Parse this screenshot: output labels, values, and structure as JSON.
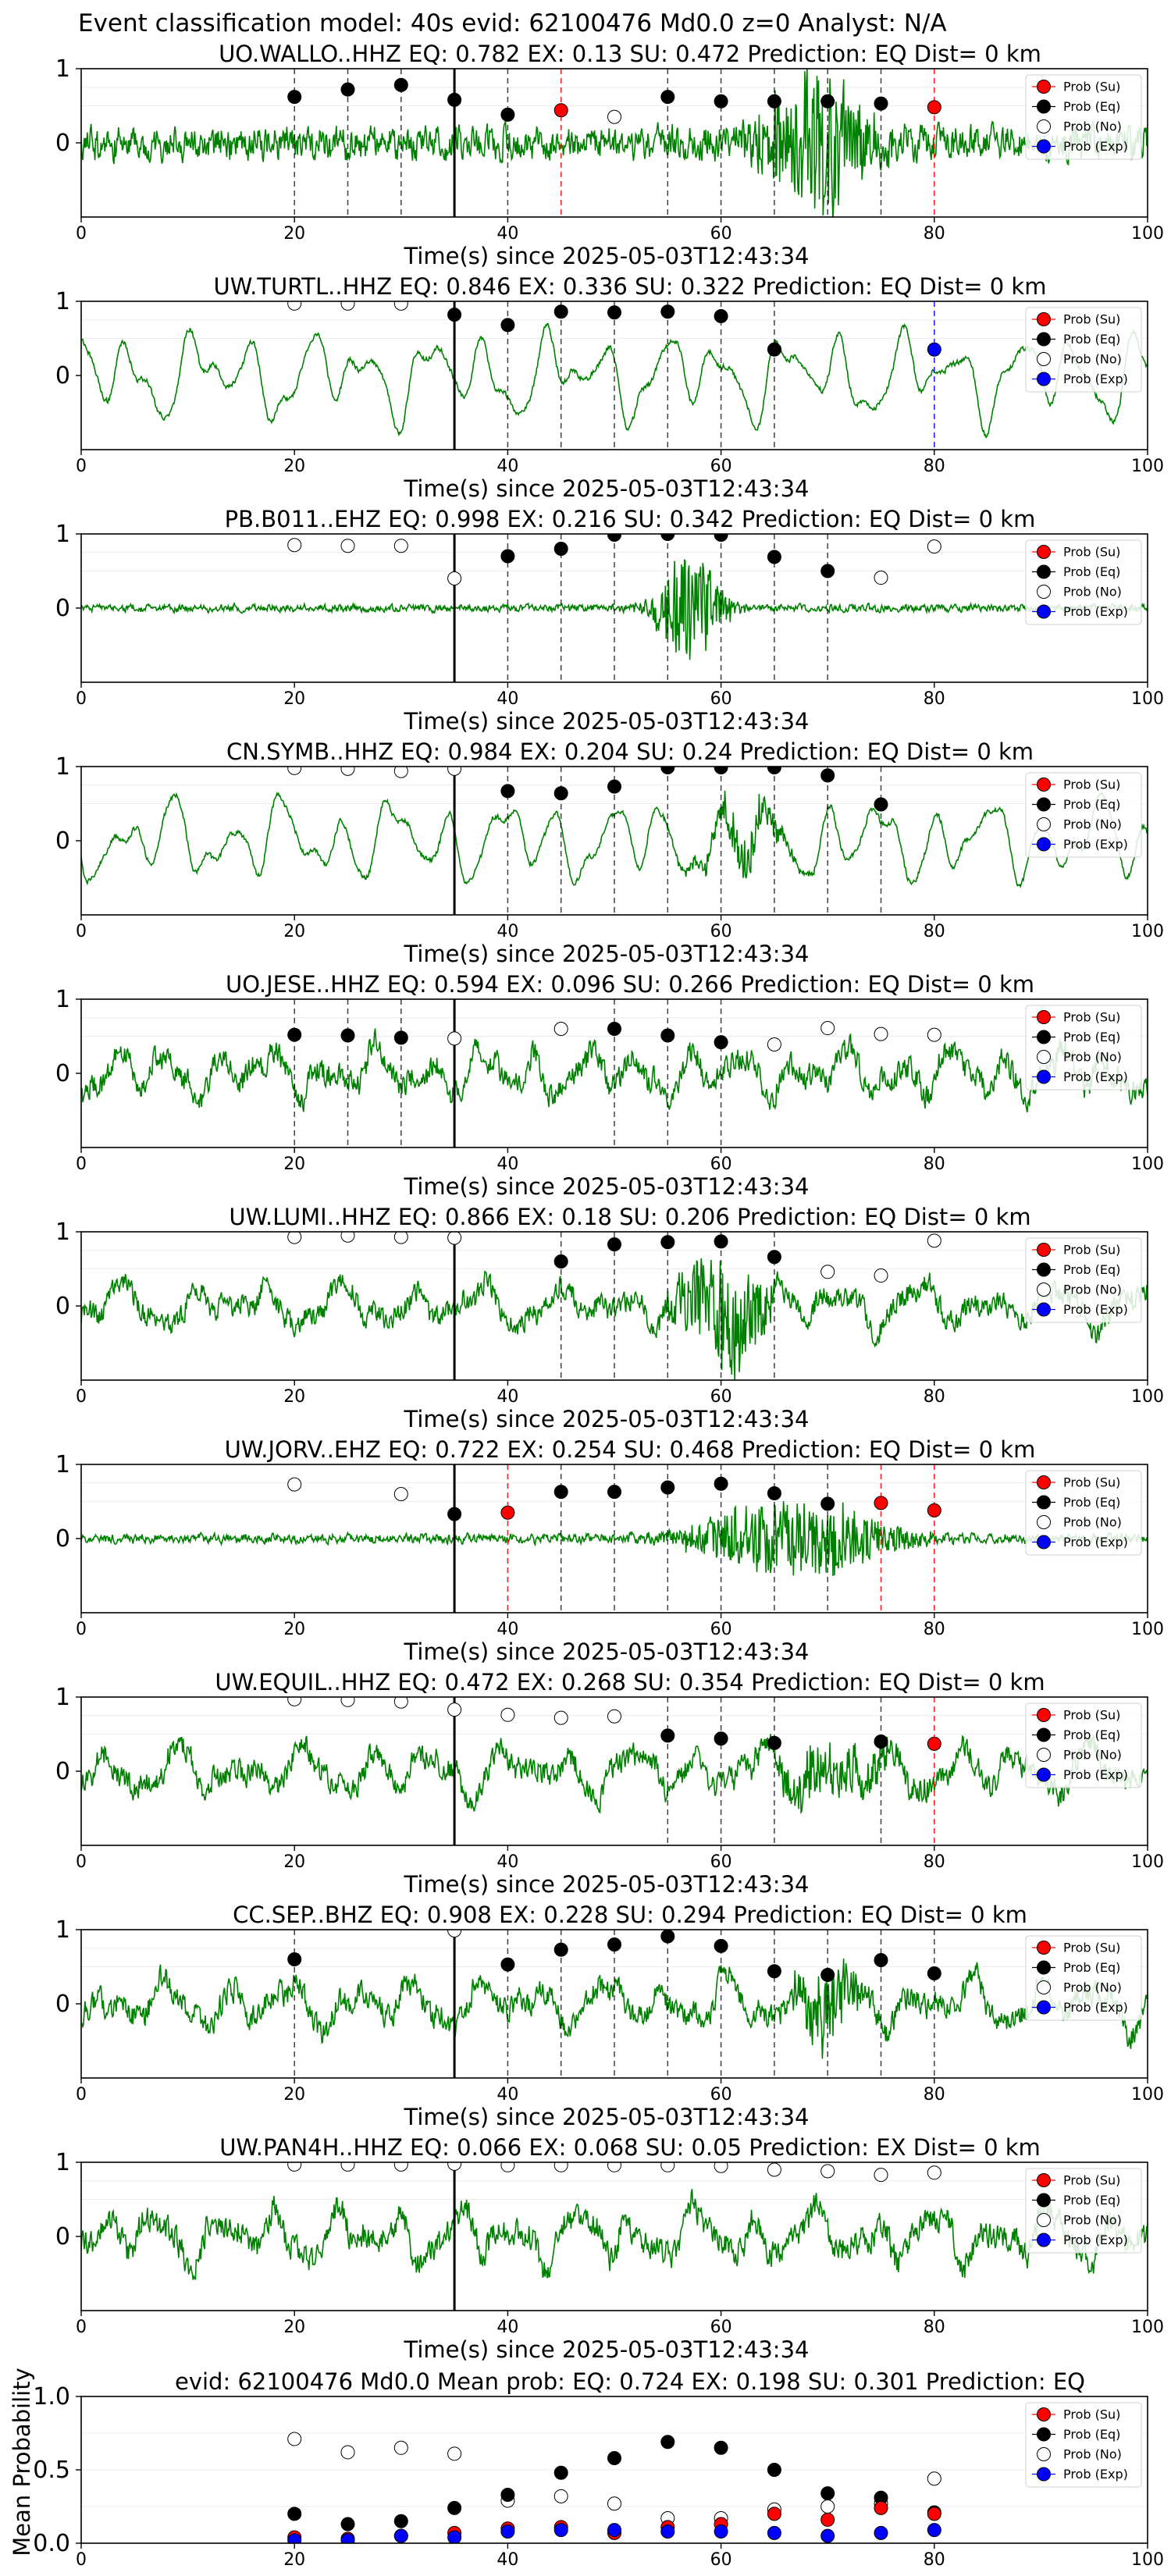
{
  "figure": {
    "suptitle": "Event classification model: 40s evid: 62100476 Md0.0 z=0 Analyst: N/A"
  },
  "legend_labels": [
    "Prob (Su)",
    "Prob (Eq)",
    "Prob (No)",
    "Prob (Exp)"
  ],
  "colors": {
    "waveform": "#008000",
    "su": "#ff0000",
    "eq": "#000000",
    "no": "#ffffff",
    "exp": "#0000ff",
    "onset_line": "#000000"
  },
  "chart_data": [
    {
      "type": "line",
      "title": "UO.WALLO..HHZ   EQ: 0.782  EX: 0.13  SU: 0.472   Prediction: EQ    Dist= 0 km",
      "xlabel": "Time(s) since 2025-05-03T12:43:34",
      "ylabel": "",
      "xlim": [
        0,
        100
      ],
      "ylim": [
        -1,
        1
      ],
      "xticks": [
        0,
        20,
        40,
        60,
        80,
        100
      ],
      "yticks": [
        1,
        0
      ],
      "onset_x": 35,
      "waveform": {
        "style": "noise",
        "base_amp": 0.18,
        "bursts": [
          {
            "center": 69,
            "width": 5,
            "amp": 0.9
          }
        ]
      },
      "points": [
        {
          "x": 20,
          "y": 0.62,
          "class": "Eq"
        },
        {
          "x": 25,
          "y": 0.72,
          "class": "Eq"
        },
        {
          "x": 30,
          "y": 0.78,
          "class": "Eq"
        },
        {
          "x": 35,
          "y": 0.58,
          "class": "Eq"
        },
        {
          "x": 40,
          "y": 0.38,
          "class": "Eq"
        },
        {
          "x": 45,
          "y": 0.44,
          "class": "Su"
        },
        {
          "x": 50,
          "y": 0.35,
          "class": "No"
        },
        {
          "x": 55,
          "y": 0.62,
          "class": "Eq"
        },
        {
          "x": 60,
          "y": 0.56,
          "class": "Eq"
        },
        {
          "x": 65,
          "y": 0.56,
          "class": "Eq"
        },
        {
          "x": 70,
          "y": 0.56,
          "class": "Eq"
        },
        {
          "x": 75,
          "y": 0.53,
          "class": "Eq"
        },
        {
          "x": 80,
          "y": 0.48,
          "class": "Su"
        }
      ]
    },
    {
      "type": "line",
      "title": "UW.TURTL..HHZ   EQ: 0.846  EX: 0.336  SU: 0.322   Prediction: EQ    Dist= 0 km",
      "xlabel": "Time(s) since 2025-05-03T12:43:34",
      "ylabel": "",
      "xlim": [
        0,
        100
      ],
      "ylim": [
        -1,
        1
      ],
      "xticks": [
        0,
        20,
        40,
        60,
        80,
        100
      ],
      "yticks": [
        1,
        0
      ],
      "onset_x": 35,
      "waveform": {
        "style": "smooth",
        "base_amp": 0.7,
        "bursts": []
      },
      "points": [
        {
          "x": 20,
          "y": 0.97,
          "class": "No"
        },
        {
          "x": 25,
          "y": 0.97,
          "class": "No"
        },
        {
          "x": 30,
          "y": 0.97,
          "class": "No"
        },
        {
          "x": 35,
          "y": 0.82,
          "class": "Eq"
        },
        {
          "x": 40,
          "y": 0.68,
          "class": "Eq"
        },
        {
          "x": 45,
          "y": 0.86,
          "class": "Eq"
        },
        {
          "x": 50,
          "y": 0.85,
          "class": "Eq"
        },
        {
          "x": 55,
          "y": 0.86,
          "class": "Eq"
        },
        {
          "x": 60,
          "y": 0.8,
          "class": "Eq"
        },
        {
          "x": 65,
          "y": 0.35,
          "class": "Eq"
        },
        {
          "x": 80,
          "y": 0.35,
          "class": "Exp"
        }
      ]
    },
    {
      "type": "line",
      "title": "PB.B011..EHZ   EQ: 0.998  EX: 0.216  SU: 0.342   Prediction: EQ    Dist= 0 km",
      "xlabel": "Time(s) since 2025-05-03T12:43:34",
      "ylabel": "",
      "xlim": [
        0,
        100
      ],
      "ylim": [
        -1,
        1
      ],
      "xticks": [
        0,
        20,
        40,
        60,
        80,
        100
      ],
      "yticks": [
        1,
        0
      ],
      "onset_x": 35,
      "waveform": {
        "style": "noise",
        "base_amp": 0.04,
        "bursts": [
          {
            "center": 57,
            "width": 3,
            "amp": 0.8
          }
        ]
      },
      "points": [
        {
          "x": 20,
          "y": 0.85,
          "class": "No"
        },
        {
          "x": 25,
          "y": 0.84,
          "class": "No"
        },
        {
          "x": 30,
          "y": 0.84,
          "class": "No"
        },
        {
          "x": 35,
          "y": 0.4,
          "class": "No"
        },
        {
          "x": 40,
          "y": 0.7,
          "class": "Eq"
        },
        {
          "x": 45,
          "y": 0.8,
          "class": "Eq"
        },
        {
          "x": 50,
          "y": 0.99,
          "class": "Eq"
        },
        {
          "x": 55,
          "y": 1.0,
          "class": "Eq"
        },
        {
          "x": 60,
          "y": 0.99,
          "class": "Eq"
        },
        {
          "x": 65,
          "y": 0.69,
          "class": "Eq"
        },
        {
          "x": 70,
          "y": 0.5,
          "class": "Eq"
        },
        {
          "x": 75,
          "y": 0.41,
          "class": "No"
        },
        {
          "x": 80,
          "y": 0.83,
          "class": "No"
        }
      ]
    },
    {
      "type": "line",
      "title": "CN.SYMB..HHZ   EQ: 0.984  EX: 0.204  SU: 0.24   Prediction: EQ    Dist= 0 km",
      "xlabel": "Time(s) since 2025-05-03T12:43:34",
      "ylabel": "",
      "xlim": [
        0,
        100
      ],
      "ylim": [
        -1,
        1
      ],
      "xticks": [
        0,
        20,
        40,
        60,
        80,
        100
      ],
      "yticks": [
        1,
        0
      ],
      "onset_x": 35,
      "waveform": {
        "style": "smooth",
        "base_amp": 0.65,
        "bursts": [
          {
            "center": 62,
            "width": 4,
            "amp": 0.3
          }
        ]
      },
      "points": [
        {
          "x": 20,
          "y": 0.98,
          "class": "No"
        },
        {
          "x": 25,
          "y": 0.97,
          "class": "No"
        },
        {
          "x": 30,
          "y": 0.94,
          "class": "No"
        },
        {
          "x": 35,
          "y": 0.97,
          "class": "No"
        },
        {
          "x": 40,
          "y": 0.67,
          "class": "Eq"
        },
        {
          "x": 45,
          "y": 0.64,
          "class": "Eq"
        },
        {
          "x": 50,
          "y": 0.73,
          "class": "Eq"
        },
        {
          "x": 55,
          "y": 0.99,
          "class": "Eq"
        },
        {
          "x": 60,
          "y": 0.99,
          "class": "Eq"
        },
        {
          "x": 65,
          "y": 0.99,
          "class": "Eq"
        },
        {
          "x": 70,
          "y": 0.88,
          "class": "Eq"
        },
        {
          "x": 75,
          "y": 0.49,
          "class": "Eq"
        }
      ]
    },
    {
      "type": "line",
      "title": "UO.JESE..HHZ   EQ: 0.594  EX: 0.096  SU: 0.266   Prediction: EQ    Dist= 0 km",
      "xlabel": "Time(s) since 2025-05-03T12:43:34",
      "ylabel": "",
      "xlim": [
        0,
        100
      ],
      "ylim": [
        -1,
        1
      ],
      "xticks": [
        0,
        20,
        40,
        60,
        80,
        100
      ],
      "yticks": [
        1,
        0
      ],
      "onset_x": 35,
      "waveform": {
        "style": "mixed",
        "base_amp": 0.5,
        "bursts": []
      },
      "points": [
        {
          "x": 20,
          "y": 0.52,
          "class": "Eq"
        },
        {
          "x": 25,
          "y": 0.51,
          "class": "Eq"
        },
        {
          "x": 30,
          "y": 0.48,
          "class": "Eq"
        },
        {
          "x": 35,
          "y": 0.47,
          "class": "No"
        },
        {
          "x": 45,
          "y": 0.6,
          "class": "No"
        },
        {
          "x": 50,
          "y": 0.6,
          "class": "Eq"
        },
        {
          "x": 55,
          "y": 0.51,
          "class": "Eq"
        },
        {
          "x": 60,
          "y": 0.42,
          "class": "Eq"
        },
        {
          "x": 65,
          "y": 0.39,
          "class": "No"
        },
        {
          "x": 70,
          "y": 0.61,
          "class": "No"
        },
        {
          "x": 75,
          "y": 0.53,
          "class": "No"
        },
        {
          "x": 80,
          "y": 0.52,
          "class": "No"
        }
      ]
    },
    {
      "type": "line",
      "title": "UW.LUMI..HHZ   EQ: 0.866  EX: 0.18  SU: 0.206   Prediction: EQ    Dist= 0 km",
      "xlabel": "Time(s) since 2025-05-03T12:43:34",
      "ylabel": "",
      "xlim": [
        0,
        100
      ],
      "ylim": [
        -1,
        1
      ],
      "xticks": [
        0,
        20,
        40,
        60,
        80,
        100
      ],
      "yticks": [
        1,
        0
      ],
      "onset_x": 35,
      "waveform": {
        "style": "mixed",
        "base_amp": 0.45,
        "bursts": [
          {
            "center": 60,
            "width": 4,
            "amp": 0.8
          }
        ]
      },
      "points": [
        {
          "x": 20,
          "y": 0.93,
          "class": "No"
        },
        {
          "x": 25,
          "y": 0.95,
          "class": "No"
        },
        {
          "x": 30,
          "y": 0.93,
          "class": "No"
        },
        {
          "x": 35,
          "y": 0.92,
          "class": "No"
        },
        {
          "x": 45,
          "y": 0.6,
          "class": "Eq"
        },
        {
          "x": 50,
          "y": 0.83,
          "class": "Eq"
        },
        {
          "x": 55,
          "y": 0.86,
          "class": "Eq"
        },
        {
          "x": 60,
          "y": 0.87,
          "class": "Eq"
        },
        {
          "x": 65,
          "y": 0.66,
          "class": "Eq"
        },
        {
          "x": 70,
          "y": 0.46,
          "class": "No"
        },
        {
          "x": 75,
          "y": 0.41,
          "class": "No"
        },
        {
          "x": 80,
          "y": 0.88,
          "class": "No"
        }
      ]
    },
    {
      "type": "line",
      "title": "UW.JORV..EHZ   EQ: 0.722  EX: 0.254  SU: 0.468   Prediction: EQ    Dist= 0 km",
      "xlabel": "Time(s) since 2025-05-03T12:43:34",
      "ylabel": "",
      "xlim": [
        0,
        100
      ],
      "ylim": [
        -1,
        1
      ],
      "xticks": [
        0,
        20,
        40,
        60,
        80,
        100
      ],
      "yticks": [
        1,
        0
      ],
      "onset_x": 35,
      "waveform": {
        "style": "noise",
        "base_amp": 0.05,
        "bursts": [
          {
            "center": 67,
            "width": 9,
            "amp": 0.55
          }
        ]
      },
      "points": [
        {
          "x": 20,
          "y": 0.73,
          "class": "No"
        },
        {
          "x": 30,
          "y": 0.6,
          "class": "No"
        },
        {
          "x": 35,
          "y": 0.33,
          "class": "Eq"
        },
        {
          "x": 40,
          "y": 0.35,
          "class": "Su"
        },
        {
          "x": 45,
          "y": 0.63,
          "class": "Eq"
        },
        {
          "x": 50,
          "y": 0.63,
          "class": "Eq"
        },
        {
          "x": 55,
          "y": 0.69,
          "class": "Eq"
        },
        {
          "x": 60,
          "y": 0.74,
          "class": "Eq"
        },
        {
          "x": 65,
          "y": 0.61,
          "class": "Eq"
        },
        {
          "x": 70,
          "y": 0.47,
          "class": "Eq"
        },
        {
          "x": 75,
          "y": 0.48,
          "class": "Su"
        },
        {
          "x": 80,
          "y": 0.38,
          "class": "Su"
        }
      ]
    },
    {
      "type": "line",
      "title": "UW.EQUIL..HHZ   EQ: 0.472  EX: 0.268  SU: 0.354   Prediction: EQ    Dist= 0 km",
      "xlabel": "Time(s) since 2025-05-03T12:43:34",
      "ylabel": "",
      "xlim": [
        0,
        100
      ],
      "ylim": [
        -1,
        1
      ],
      "xticks": [
        0,
        20,
        40,
        60,
        80,
        100
      ],
      "yticks": [
        1,
        0
      ],
      "onset_x": 35,
      "waveform": {
        "style": "mixed",
        "base_amp": 0.5,
        "bursts": [
          {
            "center": 70,
            "width": 6,
            "amp": 0.35
          }
        ]
      },
      "points": [
        {
          "x": 20,
          "y": 0.97,
          "class": "No"
        },
        {
          "x": 25,
          "y": 0.96,
          "class": "No"
        },
        {
          "x": 30,
          "y": 0.94,
          "class": "No"
        },
        {
          "x": 35,
          "y": 0.83,
          "class": "No"
        },
        {
          "x": 40,
          "y": 0.76,
          "class": "No"
        },
        {
          "x": 45,
          "y": 0.72,
          "class": "No"
        },
        {
          "x": 50,
          "y": 0.74,
          "class": "No"
        },
        {
          "x": 55,
          "y": 0.48,
          "class": "Eq"
        },
        {
          "x": 60,
          "y": 0.44,
          "class": "Eq"
        },
        {
          "x": 65,
          "y": 0.38,
          "class": "Eq"
        },
        {
          "x": 75,
          "y": 0.4,
          "class": "Eq"
        },
        {
          "x": 80,
          "y": 0.37,
          "class": "Su"
        }
      ]
    },
    {
      "type": "line",
      "title": "CC.SEP..BHZ   EQ: 0.908  EX: 0.228  SU: 0.294   Prediction: EQ    Dist= 0 km",
      "xlabel": "Time(s) since 2025-05-03T12:43:34",
      "ylabel": "",
      "xlim": [
        0,
        100
      ],
      "ylim": [
        -1,
        1
      ],
      "xticks": [
        0,
        20,
        40,
        60,
        80,
        100
      ],
      "yticks": [
        1,
        0
      ],
      "onset_x": 35,
      "waveform": {
        "style": "mixed",
        "base_amp": 0.5,
        "bursts": [
          {
            "center": 70,
            "width": 3,
            "amp": 0.5
          }
        ]
      },
      "points": [
        {
          "x": 20,
          "y": 0.6,
          "class": "Eq"
        },
        {
          "x": 35,
          "y": 0.99,
          "class": "No"
        },
        {
          "x": 40,
          "y": 0.53,
          "class": "Eq"
        },
        {
          "x": 45,
          "y": 0.73,
          "class": "Eq"
        },
        {
          "x": 50,
          "y": 0.8,
          "class": "Eq"
        },
        {
          "x": 55,
          "y": 0.91,
          "class": "Eq"
        },
        {
          "x": 60,
          "y": 0.78,
          "class": "Eq"
        },
        {
          "x": 65,
          "y": 0.44,
          "class": "Eq"
        },
        {
          "x": 70,
          "y": 0.39,
          "class": "Eq"
        },
        {
          "x": 75,
          "y": 0.59,
          "class": "Eq"
        },
        {
          "x": 80,
          "y": 0.41,
          "class": "Eq"
        }
      ]
    },
    {
      "type": "line",
      "title": "UW.PAN4H..HHZ   EQ: 0.066  EX: 0.068  SU: 0.05   Prediction: EX    Dist= 0 km",
      "xlabel": "Time(s) since 2025-05-03T12:43:34",
      "ylabel": "",
      "xlim": [
        0,
        100
      ],
      "ylim": [
        -1,
        1
      ],
      "xticks": [
        0,
        20,
        40,
        60,
        80,
        100
      ],
      "yticks": [
        1,
        0
      ],
      "onset_x": 35,
      "waveform": {
        "style": "mixed",
        "base_amp": 0.55,
        "bursts": []
      },
      "points": [
        {
          "x": 20,
          "y": 0.97,
          "class": "No"
        },
        {
          "x": 25,
          "y": 0.97,
          "class": "No"
        },
        {
          "x": 30,
          "y": 0.97,
          "class": "No"
        },
        {
          "x": 35,
          "y": 0.98,
          "class": "No"
        },
        {
          "x": 40,
          "y": 0.96,
          "class": "No"
        },
        {
          "x": 45,
          "y": 0.96,
          "class": "No"
        },
        {
          "x": 50,
          "y": 0.96,
          "class": "No"
        },
        {
          "x": 55,
          "y": 0.96,
          "class": "No"
        },
        {
          "x": 60,
          "y": 0.95,
          "class": "No"
        },
        {
          "x": 65,
          "y": 0.9,
          "class": "No"
        },
        {
          "x": 70,
          "y": 0.88,
          "class": "No"
        },
        {
          "x": 75,
          "y": 0.83,
          "class": "No"
        },
        {
          "x": 80,
          "y": 0.86,
          "class": "No"
        }
      ]
    },
    {
      "type": "scatter",
      "title": "evid: 62100476  Md0.0   Mean prob:   EQ: 0.724  EX: 0.198  SU: 0.301   Prediction: EQ",
      "xlabel": "",
      "ylabel": "Mean Probability",
      "xlim": [
        0,
        100
      ],
      "ylim": [
        0,
        1
      ],
      "xticks": [
        0,
        20,
        40,
        60,
        80,
        100
      ],
      "yticks": [
        0.0,
        0.5,
        1.0
      ],
      "ytick_labels": [
        "0.0",
        "0.5",
        "1.0"
      ],
      "x": [
        20,
        25,
        30,
        35,
        40,
        45,
        50,
        55,
        60,
        65,
        70,
        75,
        80
      ],
      "series": [
        {
          "name": "Prob (No)",
          "class": "No",
          "values": [
            0.71,
            0.62,
            0.65,
            0.61,
            0.29,
            0.32,
            0.27,
            0.17,
            0.17,
            0.23,
            0.25,
            0.27,
            0.44
          ]
        },
        {
          "name": "Prob (Eq)",
          "class": "Eq",
          "values": [
            0.2,
            0.13,
            0.15,
            0.24,
            0.33,
            0.48,
            0.58,
            0.69,
            0.65,
            0.5,
            0.34,
            0.31,
            0.21
          ]
        },
        {
          "name": "Prob (Su)",
          "class": "Su",
          "values": [
            0.04,
            0.03,
            0.05,
            0.07,
            0.1,
            0.11,
            0.07,
            0.11,
            0.13,
            0.2,
            0.16,
            0.24,
            0.2
          ]
        },
        {
          "name": "Prob (Exp)",
          "class": "Exp",
          "values": [
            0.02,
            0.02,
            0.05,
            0.04,
            0.08,
            0.09,
            0.09,
            0.08,
            0.08,
            0.07,
            0.05,
            0.07,
            0.09
          ]
        }
      ]
    }
  ]
}
